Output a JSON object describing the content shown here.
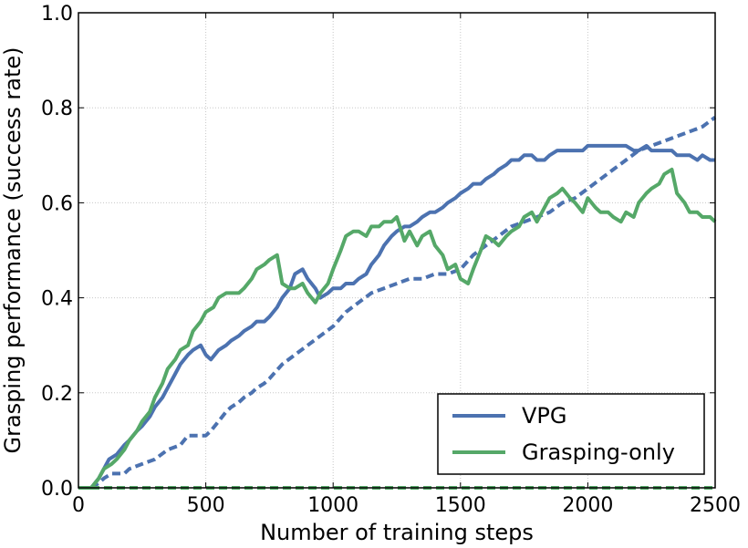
{
  "chart_data": {
    "type": "line",
    "title": "",
    "xlabel": "Number of training steps",
    "ylabel": "Grasping performance (success rate)",
    "xlim": [
      0,
      2500
    ],
    "ylim": [
      0,
      1.0
    ],
    "xticks": [
      0,
      500,
      1000,
      1500,
      2000,
      2500
    ],
    "yticks": [
      0.0,
      0.2,
      0.4,
      0.6,
      0.8,
      1.0
    ],
    "xtick_labels": [
      "0",
      "500",
      "1000",
      "1500",
      "2000",
      "2500"
    ],
    "ytick_labels": [
      "0.0",
      "0.2",
      "0.4",
      "0.6",
      "0.8",
      "1.0"
    ],
    "grid": true,
    "legend": {
      "placement": "bottom-right",
      "entries": [
        "VPG",
        "Grasping-only"
      ]
    },
    "colors": {
      "vpg": "#4c72b0",
      "grasping": "#55a868"
    },
    "series": [
      {
        "name": "VPG",
        "style": "solid",
        "color": "#4c72b0",
        "x": [
          0,
          50,
          80,
          100,
          120,
          150,
          180,
          200,
          230,
          250,
          280,
          300,
          330,
          350,
          380,
          400,
          430,
          450,
          480,
          500,
          520,
          550,
          580,
          600,
          630,
          650,
          680,
          700,
          730,
          750,
          780,
          800,
          830,
          850,
          880,
          900,
          930,
          950,
          980,
          1000,
          1030,
          1050,
          1080,
          1100,
          1130,
          1150,
          1180,
          1200,
          1230,
          1250,
          1280,
          1300,
          1330,
          1350,
          1380,
          1400,
          1430,
          1450,
          1480,
          1500,
          1530,
          1550,
          1580,
          1600,
          1630,
          1650,
          1680,
          1700,
          1730,
          1750,
          1780,
          1800,
          1830,
          1850,
          1880,
          1900,
          1930,
          1950,
          1980,
          2000,
          2030,
          2050,
          2080,
          2100,
          2130,
          2150,
          2180,
          2200,
          2230,
          2250,
          2280,
          2300,
          2330,
          2350,
          2380,
          2400,
          2430,
          2450,
          2480,
          2500
        ],
        "y": [
          0,
          0.0,
          0.02,
          0.04,
          0.06,
          0.07,
          0.09,
          0.1,
          0.12,
          0.13,
          0.15,
          0.17,
          0.19,
          0.21,
          0.24,
          0.26,
          0.28,
          0.29,
          0.3,
          0.28,
          0.27,
          0.29,
          0.3,
          0.31,
          0.32,
          0.33,
          0.34,
          0.35,
          0.35,
          0.36,
          0.38,
          0.4,
          0.42,
          0.45,
          0.46,
          0.44,
          0.42,
          0.4,
          0.41,
          0.42,
          0.42,
          0.43,
          0.43,
          0.44,
          0.45,
          0.47,
          0.49,
          0.51,
          0.53,
          0.54,
          0.55,
          0.55,
          0.56,
          0.57,
          0.58,
          0.58,
          0.59,
          0.6,
          0.61,
          0.62,
          0.63,
          0.64,
          0.64,
          0.65,
          0.66,
          0.67,
          0.68,
          0.69,
          0.69,
          0.7,
          0.7,
          0.69,
          0.69,
          0.7,
          0.71,
          0.71,
          0.71,
          0.71,
          0.71,
          0.72,
          0.72,
          0.72,
          0.72,
          0.72,
          0.72,
          0.72,
          0.71,
          0.71,
          0.72,
          0.71,
          0.71,
          0.71,
          0.71,
          0.7,
          0.7,
          0.7,
          0.69,
          0.7,
          0.69,
          0.69
        ]
      },
      {
        "name": "",
        "style": "dashed",
        "color": "#4c72b0",
        "x": [
          0,
          50,
          80,
          100,
          130,
          150,
          180,
          200,
          250,
          300,
          350,
          400,
          430,
          450,
          480,
          500,
          520,
          550,
          580,
          600,
          630,
          650,
          680,
          700,
          730,
          750,
          800,
          850,
          900,
          950,
          1000,
          1050,
          1100,
          1150,
          1200,
          1250,
          1300,
          1350,
          1400,
          1450,
          1500,
          1550,
          1600,
          1650,
          1700,
          1750,
          1800,
          1850,
          1900,
          1950,
          2000,
          2050,
          2100,
          2150,
          2200,
          2250,
          2300,
          2350,
          2400,
          2450,
          2500
        ],
        "y": [
          0,
          0,
          0.01,
          0.02,
          0.03,
          0.03,
          0.03,
          0.04,
          0.05,
          0.06,
          0.08,
          0.09,
          0.11,
          0.11,
          0.11,
          0.11,
          0.12,
          0.14,
          0.16,
          0.17,
          0.18,
          0.19,
          0.2,
          0.21,
          0.22,
          0.23,
          0.26,
          0.28,
          0.3,
          0.32,
          0.34,
          0.37,
          0.39,
          0.41,
          0.42,
          0.43,
          0.44,
          0.44,
          0.45,
          0.45,
          0.46,
          0.49,
          0.51,
          0.53,
          0.55,
          0.56,
          0.57,
          0.58,
          0.6,
          0.61,
          0.63,
          0.65,
          0.67,
          0.69,
          0.71,
          0.72,
          0.73,
          0.74,
          0.75,
          0.76,
          0.78
        ]
      },
      {
        "name": "Grasping-only",
        "style": "solid",
        "color": "#55a868",
        "x": [
          0,
          50,
          80,
          100,
          130,
          150,
          180,
          200,
          230,
          250,
          280,
          300,
          330,
          350,
          380,
          400,
          430,
          450,
          480,
          500,
          530,
          550,
          580,
          600,
          630,
          650,
          680,
          700,
          730,
          750,
          780,
          800,
          830,
          850,
          880,
          900,
          930,
          950,
          980,
          1000,
          1030,
          1050,
          1080,
          1100,
          1130,
          1150,
          1180,
          1200,
          1230,
          1250,
          1280,
          1300,
          1330,
          1350,
          1380,
          1400,
          1430,
          1450,
          1480,
          1500,
          1530,
          1550,
          1580,
          1600,
          1630,
          1650,
          1680,
          1700,
          1730,
          1750,
          1780,
          1800,
          1830,
          1850,
          1880,
          1900,
          1930,
          1950,
          1980,
          2000,
          2030,
          2050,
          2080,
          2100,
          2130,
          2150,
          2180,
          2200,
          2230,
          2250,
          2280,
          2300,
          2330,
          2350,
          2380,
          2400,
          2430,
          2450,
          2480,
          2500
        ],
        "y": [
          0,
          0.0,
          0.02,
          0.04,
          0.05,
          0.06,
          0.08,
          0.1,
          0.12,
          0.14,
          0.16,
          0.19,
          0.22,
          0.25,
          0.27,
          0.29,
          0.3,
          0.33,
          0.35,
          0.37,
          0.38,
          0.4,
          0.41,
          0.41,
          0.41,
          0.42,
          0.44,
          0.46,
          0.47,
          0.48,
          0.49,
          0.43,
          0.42,
          0.42,
          0.43,
          0.41,
          0.39,
          0.41,
          0.43,
          0.46,
          0.5,
          0.53,
          0.54,
          0.54,
          0.53,
          0.55,
          0.55,
          0.56,
          0.56,
          0.57,
          0.52,
          0.54,
          0.51,
          0.53,
          0.54,
          0.51,
          0.49,
          0.46,
          0.47,
          0.44,
          0.43,
          0.46,
          0.5,
          0.53,
          0.52,
          0.51,
          0.53,
          0.54,
          0.55,
          0.57,
          0.58,
          0.56,
          0.59,
          0.61,
          0.62,
          0.63,
          0.61,
          0.6,
          0.58,
          0.61,
          0.59,
          0.58,
          0.58,
          0.57,
          0.56,
          0.58,
          0.57,
          0.6,
          0.62,
          0.63,
          0.64,
          0.66,
          0.67,
          0.62,
          0.6,
          0.58,
          0.58,
          0.57,
          0.57,
          0.56
        ]
      },
      {
        "name": "",
        "style": "dashed",
        "color": "#55a868",
        "x": [
          0,
          2500
        ],
        "y": [
          0,
          0
        ]
      }
    ]
  }
}
